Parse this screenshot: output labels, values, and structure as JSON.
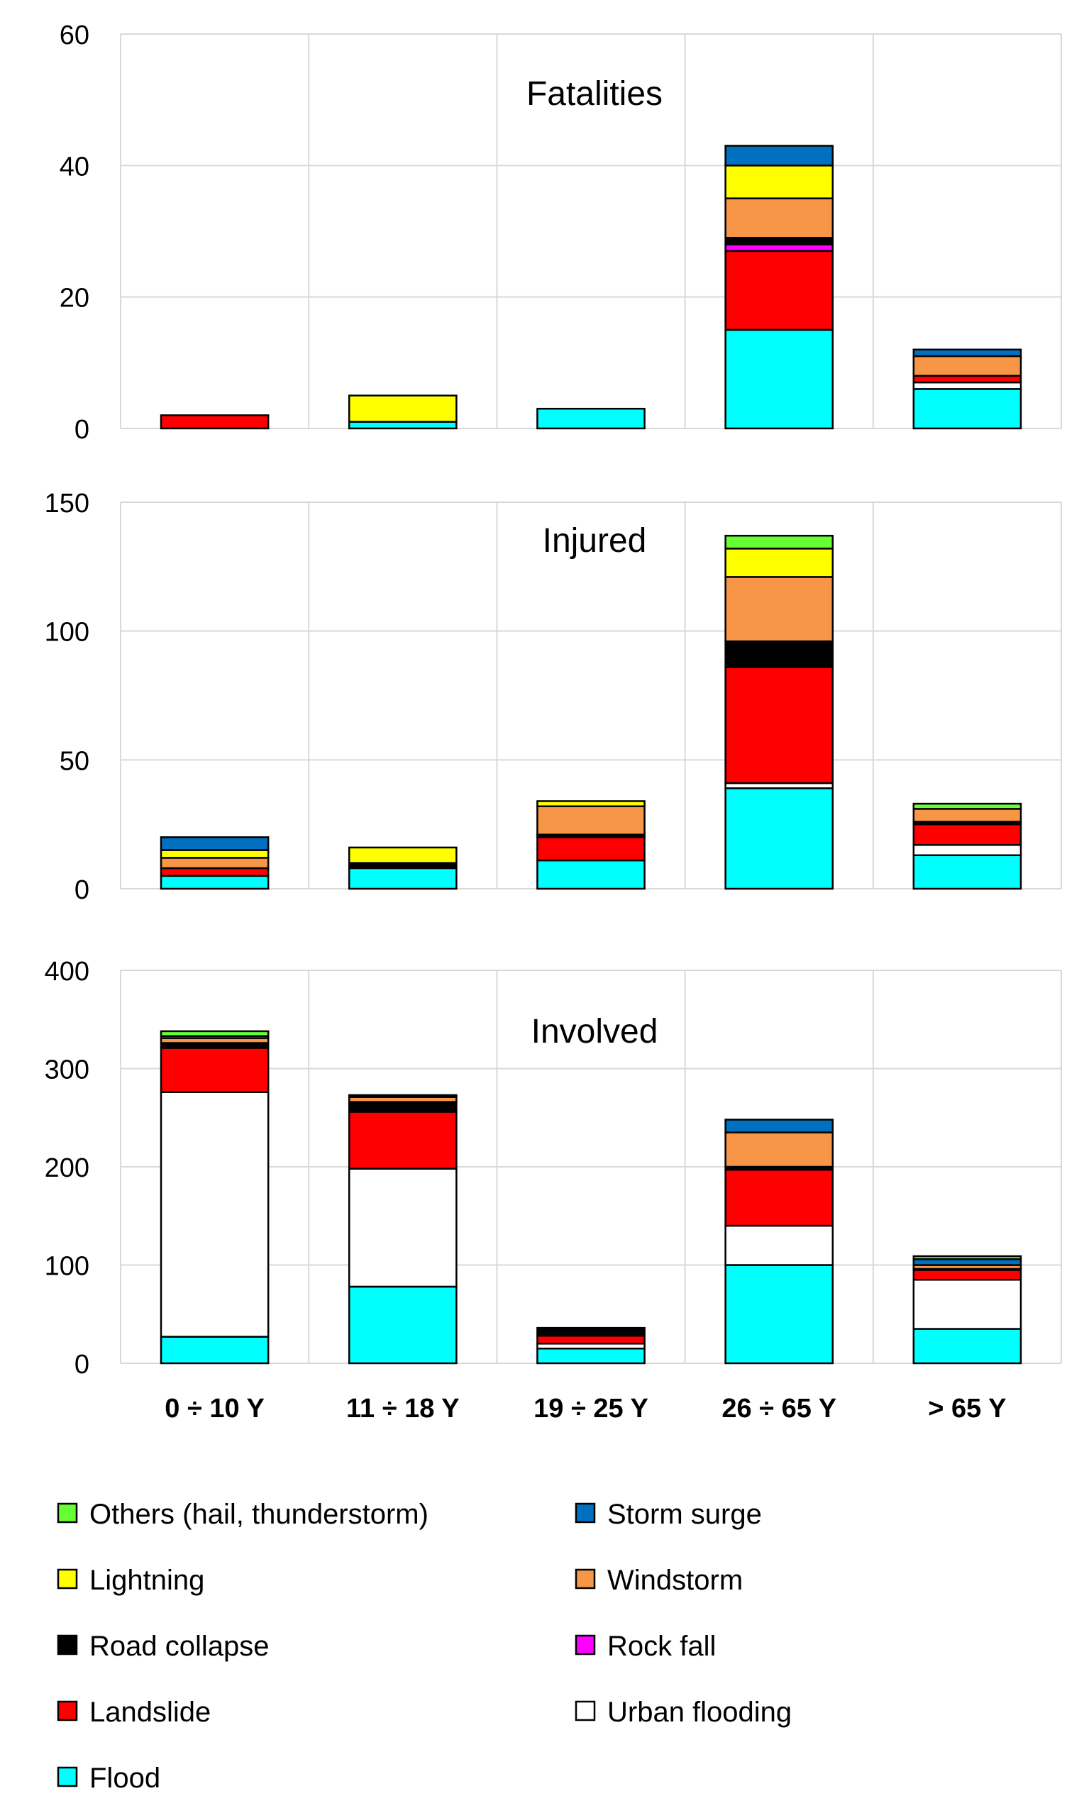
{
  "chart_data": {
    "type": "bar",
    "stacked": true,
    "categories": [
      "0 ÷ 10 Y",
      "11 ÷ 18 Y",
      "19 ÷ 25 Y",
      "26 ÷ 65 Y",
      "> 65 Y"
    ],
    "series": [
      {
        "key": "flood",
        "name": "Flood",
        "color": "#00FFFF"
      },
      {
        "key": "urban",
        "name": "Urban flooding",
        "color": "#FFFFFF"
      },
      {
        "key": "landslide",
        "name": "Landslide",
        "color": "#FF0000"
      },
      {
        "key": "rockfall",
        "name": "Rock fall",
        "color": "#FF00FF"
      },
      {
        "key": "road",
        "name": "Road collapse",
        "color": "#000000"
      },
      {
        "key": "windstorm",
        "name": "Windstorm",
        "color": "#F79646"
      },
      {
        "key": "lightning",
        "name": "Lightning",
        "color": "#FFFF00"
      },
      {
        "key": "storm",
        "name": "Storm surge",
        "color": "#0070C0"
      },
      {
        "key": "others",
        "name": "Others (hail, thunderstorm)",
        "color": "#66FF33"
      }
    ],
    "panels": [
      {
        "title": "Fatalities",
        "ylim": [
          0,
          60
        ],
        "yticks": [
          0,
          20,
          40,
          60
        ],
        "values": {
          "flood": [
            0,
            1,
            3,
            15,
            6
          ],
          "urban": [
            0,
            0,
            0,
            0,
            1
          ],
          "landslide": [
            2,
            0,
            0,
            12,
            1
          ],
          "rockfall": [
            0,
            0,
            0,
            1,
            0
          ],
          "road": [
            0,
            0,
            0,
            1,
            0
          ],
          "windstorm": [
            0,
            0,
            0,
            6,
            3
          ],
          "lightning": [
            0,
            4,
            0,
            5,
            0
          ],
          "storm": [
            0,
            0,
            0,
            3,
            1
          ],
          "others": [
            0,
            0,
            0,
            0,
            0
          ]
        }
      },
      {
        "title": "Injured",
        "ylim": [
          0,
          150
        ],
        "yticks": [
          0,
          50,
          100,
          150
        ],
        "values": {
          "flood": [
            5,
            8,
            11,
            39,
            13
          ],
          "urban": [
            0,
            0,
            0,
            2,
            4
          ],
          "landslide": [
            3,
            0,
            9,
            45,
            8
          ],
          "rockfall": [
            0,
            0,
            0,
            0,
            0
          ],
          "road": [
            0,
            2,
            1,
            10,
            1
          ],
          "windstorm": [
            4,
            0,
            11,
            25,
            5
          ],
          "lightning": [
            3,
            6,
            2,
            11,
            0
          ],
          "storm": [
            5,
            0,
            0,
            0,
            0
          ],
          "others": [
            0,
            0,
            0,
            5,
            2
          ]
        }
      },
      {
        "title": "Involved",
        "ylim": [
          0,
          400
        ],
        "yticks": [
          0,
          100,
          200,
          300,
          400
        ],
        "values": {
          "flood": [
            27,
            78,
            15,
            100,
            35
          ],
          "urban": [
            249,
            120,
            5,
            40,
            50
          ],
          "landslide": [
            45,
            58,
            8,
            57,
            10
          ],
          "rockfall": [
            0,
            0,
            0,
            0,
            0
          ],
          "road": [
            5,
            10,
            8,
            3,
            1
          ],
          "windstorm": [
            5,
            5,
            0,
            35,
            4
          ],
          "lightning": [
            2,
            1,
            0,
            0,
            0
          ],
          "storm": [
            0,
            0,
            0,
            13,
            6
          ],
          "others": [
            5,
            1,
            0,
            0,
            3
          ]
        }
      }
    ],
    "legend_order": [
      "others",
      "storm",
      "lightning",
      "windstorm",
      "road",
      "rockfall",
      "landslide",
      "urban",
      "flood"
    ]
  }
}
